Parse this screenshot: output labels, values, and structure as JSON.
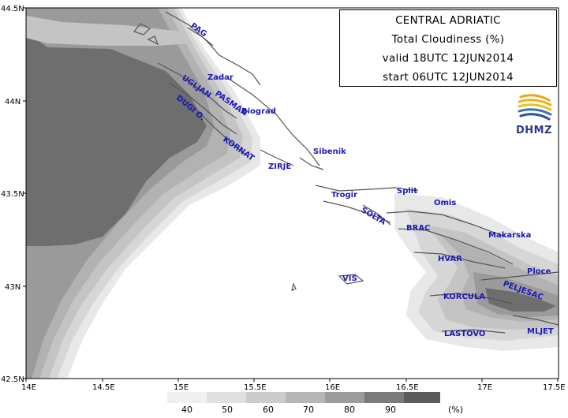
{
  "title": {
    "region": "CENTRAL ADRIATIC",
    "variable": "Total Cloudiness (%)",
    "valid": "valid 18UTC 12JUN2014",
    "start": "start 06UTC 12JUN2014"
  },
  "logo": {
    "text": "DHMZ",
    "icon": "dhmz-logo-icon"
  },
  "axes": {
    "lat_ticks": [
      "44.5N",
      "44N",
      "43.5N",
      "43N",
      "42.5N"
    ],
    "lon_ticks": [
      "14E",
      "14.5E",
      "15E",
      "15.5E",
      "16E",
      "16.5E",
      "17E",
      "17.5E"
    ]
  },
  "places": {
    "pag": "PAG",
    "zadar": "Zadar",
    "ugljan": "UGLJAN",
    "pasman": "PASMAN",
    "biograd": "Biograd",
    "dugi": "DUGI O.",
    "kornat": "KORNAT",
    "sibenik": "Sibenik",
    "zirje": "ZIRJE",
    "trogir": "Trogir",
    "split": "Split",
    "omis": "Omis",
    "solta": "SOLTA",
    "brac": "BRAC",
    "makarska": "Makarska",
    "hvar": "HVAR",
    "vis": "VIS",
    "ploce": "Ploce",
    "peljesac": "PELJESAC",
    "korcula": "KORCULA",
    "lastovo": "LASTOVO",
    "mljet": "MLJET"
  },
  "legend": {
    "labels": [
      "40",
      "50",
      "60",
      "70",
      "80",
      "90"
    ],
    "unit": "(%)",
    "colors": [
      "#e8e8e8",
      "#d6d6d6",
      "#c4c4c4",
      "#b2b2b2",
      "#9a9a9a",
      "#6e6e6e"
    ]
  }
}
